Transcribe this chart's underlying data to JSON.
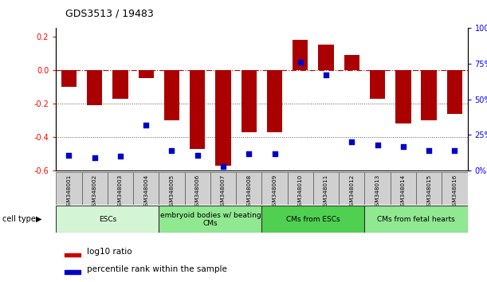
{
  "title": "GDS3513 / 19483",
  "samples": [
    "GSM348001",
    "GSM348002",
    "GSM348003",
    "GSM348004",
    "GSM348005",
    "GSM348006",
    "GSM348007",
    "GSM348008",
    "GSM348009",
    "GSM348010",
    "GSM348011",
    "GSM348012",
    "GSM348013",
    "GSM348014",
    "GSM348015",
    "GSM348016"
  ],
  "log10_ratio": [
    -0.1,
    -0.21,
    -0.17,
    -0.05,
    -0.3,
    -0.47,
    -0.57,
    -0.37,
    -0.37,
    0.18,
    0.15,
    0.09,
    -0.17,
    -0.32,
    -0.3,
    -0.26
  ],
  "percentile_rank": [
    11,
    9,
    10,
    32,
    14,
    11,
    3,
    12,
    12,
    76,
    67,
    20,
    18,
    17,
    14,
    14
  ],
  "ylim_left": [
    -0.6,
    0.25
  ],
  "ylim_right": [
    0,
    100
  ],
  "left_yticks": [
    0.2,
    0.0,
    -0.2,
    -0.4,
    -0.6
  ],
  "right_yticks": [
    100,
    75,
    50,
    25,
    0
  ],
  "cell_type_groups": [
    {
      "label": "ESCs",
      "start": 0,
      "end": 4,
      "color": "#d4f5d4"
    },
    {
      "label": "embryoid bodies w/ beating\nCMs",
      "start": 4,
      "end": 8,
      "color": "#90e890"
    },
    {
      "label": "CMs from ESCs",
      "start": 8,
      "end": 12,
      "color": "#50d050"
    },
    {
      "label": "CMs from fetal hearts",
      "start": 12,
      "end": 16,
      "color": "#90e890"
    }
  ],
  "bar_color": "#aa0000",
  "dot_color": "#0000cc",
  "zero_line_color": "#cc0000",
  "grid_color": "#555555",
  "legend_items": [
    {
      "label": "log10 ratio",
      "color": "#cc0000"
    },
    {
      "label": "percentile rank within the sample",
      "color": "#0000cc"
    }
  ],
  "bar_width": 0.6
}
